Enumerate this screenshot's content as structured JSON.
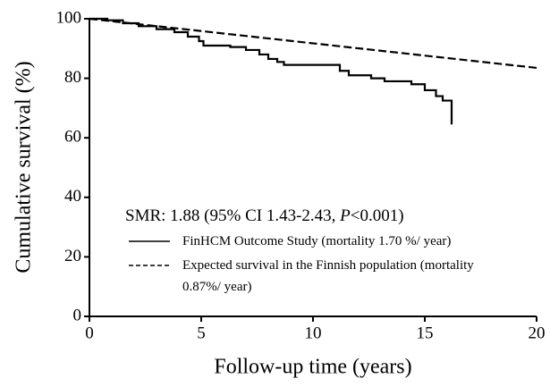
{
  "chart_data": {
    "type": "line",
    "x_label": "Follow-up time (years)",
    "y_label": "Cumulative survival (%)",
    "annotation": [
      "SMR: 1.88 (95% CI 1.43-2.43, ",
      "P",
      "<0.001)"
    ],
    "xlim": [
      0,
      20
    ],
    "xticks": [
      0,
      5,
      10,
      15,
      20
    ],
    "ylim": [
      0,
      100
    ],
    "yticks": [
      0,
      20,
      40,
      60,
      80,
      100
    ],
    "series": [
      {
        "name": "FinHCM Outcome Study (mortality 1.70 %/ year)",
        "color": "#000000",
        "dash": false,
        "x": [
          0,
          0.8,
          0.8,
          1.5,
          1.5,
          2.2,
          2.2,
          3,
          3,
          3.8,
          3.8,
          4.4,
          4.4,
          4.9,
          4.9,
          5.1,
          5.1,
          6.3,
          6.3,
          7,
          7,
          7.6,
          7.6,
          8,
          8,
          8.4,
          8.4,
          8.7,
          8.7,
          11.2,
          11.2,
          11.6,
          11.6,
          12.6,
          12.6,
          13.2,
          13.2,
          14.4,
          14.4,
          15,
          15,
          15.5,
          15.5,
          15.8,
          15.8,
          16.2,
          16.2
        ],
        "values": [
          100,
          100,
          99.5,
          99.5,
          98.5,
          98.5,
          97.5,
          97.5,
          96.5,
          96.5,
          95.5,
          95.5,
          94,
          94,
          92.5,
          92.5,
          91,
          91,
          90.5,
          90.5,
          89.5,
          89.5,
          88,
          88,
          86.5,
          86.5,
          85.5,
          85.5,
          84.5,
          84.5,
          82.5,
          82.5,
          81,
          81,
          80,
          80,
          79,
          79,
          78,
          78,
          76,
          76,
          74,
          74,
          72.5,
          72.5,
          64.5
        ]
      },
      {
        "name": "Expected survival in the Finnish population (mortality 0.87%/ year)",
        "color": "#000000",
        "dash": true,
        "x": [
          0,
          20
        ],
        "values": [
          100,
          83.5
        ]
      }
    ]
  }
}
